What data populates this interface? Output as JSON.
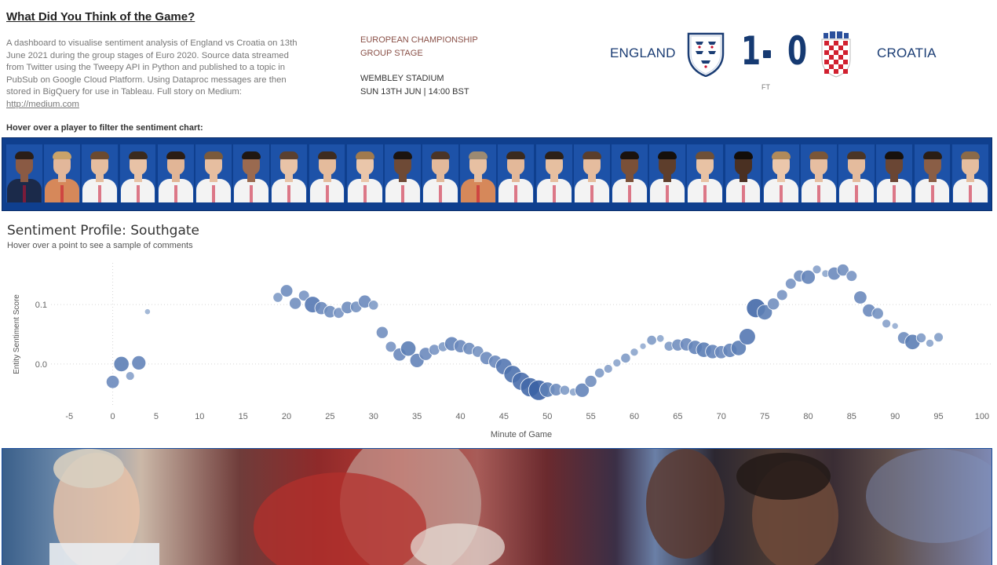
{
  "header": {
    "title": "What Did You Think of the Game?",
    "description": "A dashboard to visualise sentiment analysis of England vs Croatia on 13th June 2021 during the group stages of Euro 2020. Source data streamed from Twitter using the Tweepy API in Python and published to a topic in PubSub on Google Cloud Platform. Using Dataproc messages are then stored in BigQuery for use in Tableau. Full story on Medium: ",
    "link_text": "http://medium.com"
  },
  "match": {
    "competition": "EUROPEAN CHAMPIONSHIP",
    "stage": "GROUP STAGE",
    "venue": "WEMBLEY STADIUM",
    "datetime": "SUN 13TH JUN | 14:00 BST",
    "home_team": "ENGLAND",
    "away_team": "CROATIA",
    "home_score": "1",
    "away_score": "0",
    "status": "FT"
  },
  "players_hint": "Hover over a player to filter the sentiment chart:",
  "players": [
    {
      "skin": "#8a5a44",
      "hair": "#2a1e18",
      "kit": "#1b2a4a"
    },
    {
      "skin": "#e2b79a",
      "hair": "#c9a36a",
      "kit": "#d6885a"
    },
    {
      "skin": "#e5bd9f",
      "hair": "#6b4a30",
      "kit": "#f3f3f3"
    },
    {
      "skin": "#e8c2a6",
      "hair": "#3a2a1e",
      "kit": "#f3f3f3"
    },
    {
      "skin": "#e1b596",
      "hair": "#2b1d14",
      "kit": "#f3f3f3"
    },
    {
      "skin": "#e6bea0",
      "hair": "#7a5a3c",
      "kit": "#f3f3f3"
    },
    {
      "skin": "#9a6a50",
      "hair": "#1f1712",
      "kit": "#f3f3f3"
    },
    {
      "skin": "#e8c3a7",
      "hair": "#5a4030",
      "kit": "#f3f3f3"
    },
    {
      "skin": "#e4bb9c",
      "hair": "#3e2c20",
      "kit": "#f3f3f3"
    },
    {
      "skin": "#eac6aa",
      "hair": "#a07a4e",
      "kit": "#f3f3f3"
    },
    {
      "skin": "#6e4a36",
      "hair": "#1b1410",
      "kit": "#f3f3f3"
    },
    {
      "skin": "#e2b99b",
      "hair": "#4a3426",
      "kit": "#f3f3f3"
    },
    {
      "skin": "#e7c0a2",
      "hair": "#9c8a72",
      "kit": "#d6885a"
    },
    {
      "skin": "#e3b899",
      "hair": "#3a2a1f",
      "kit": "#f3f3f3"
    },
    {
      "skin": "#e6bfa0",
      "hair": "#2c2018",
      "kit": "#f3f3f3"
    },
    {
      "skin": "#e5bc9e",
      "hair": "#5a3e2c",
      "kit": "#f3f3f3"
    },
    {
      "skin": "#7a5038",
      "hair": "#1a120e",
      "kit": "#f3f3f3"
    },
    {
      "skin": "#5e3e2c",
      "hair": "#15100c",
      "kit": "#f3f3f3"
    },
    {
      "skin": "#e8c2a4",
      "hair": "#6e5038",
      "kit": "#f3f3f3"
    },
    {
      "skin": "#4a3022",
      "hair": "#120d0a",
      "kit": "#f3f3f3"
    },
    {
      "skin": "#ebc7ab",
      "hair": "#b08a5a",
      "kit": "#f3f3f3"
    },
    {
      "skin": "#e6bea1",
      "hair": "#7a5638",
      "kit": "#f3f3f3"
    },
    {
      "skin": "#e4bb9d",
      "hair": "#4a3526",
      "kit": "#f3f3f3"
    },
    {
      "skin": "#6a4634",
      "hair": "#17110d",
      "kit": "#f3f3f3"
    },
    {
      "skin": "#8a5e46",
      "hair": "#2a1e16",
      "kit": "#f3f3f3"
    },
    {
      "skin": "#e5bd9f",
      "hair": "#8a6a48",
      "kit": "#f3f3f3"
    }
  ],
  "chart_title": "Sentiment Profile:  Southgate",
  "chart_subtitle": "Hover over a point to see a sample of comments",
  "chart_data": {
    "type": "scatter",
    "xlabel": "Minute of Game",
    "ylabel": "Entity Sentiment Score",
    "xlim": [
      -8,
      101
    ],
    "ylim": [
      -0.07,
      0.17
    ],
    "xticks": [
      -5,
      0,
      5,
      10,
      15,
      20,
      25,
      30,
      35,
      40,
      45,
      50,
      55,
      60,
      65,
      70,
      75,
      80,
      85,
      90,
      95,
      100
    ],
    "yticks": [
      0.0,
      0.1
    ],
    "ytick_labels": [
      "0.0",
      "0.1"
    ],
    "grid": "horizontal dotted",
    "points": [
      {
        "x": 0,
        "y": -0.03,
        "s": 0.45
      },
      {
        "x": 1,
        "y": 0.0,
        "s": 0.55
      },
      {
        "x": 2,
        "y": -0.02,
        "s": 0.25
      },
      {
        "x": 3,
        "y": 0.002,
        "s": 0.5
      },
      {
        "x": 4,
        "y": 0.088,
        "s": 0.12
      },
      {
        "x": 19,
        "y": 0.112,
        "s": 0.3
      },
      {
        "x": 20,
        "y": 0.123,
        "s": 0.42
      },
      {
        "x": 21,
        "y": 0.102,
        "s": 0.4
      },
      {
        "x": 22,
        "y": 0.115,
        "s": 0.35
      },
      {
        "x": 23,
        "y": 0.1,
        "s": 0.6
      },
      {
        "x": 24,
        "y": 0.094,
        "s": 0.45
      },
      {
        "x": 25,
        "y": 0.088,
        "s": 0.42
      },
      {
        "x": 26,
        "y": 0.086,
        "s": 0.35
      },
      {
        "x": 27,
        "y": 0.095,
        "s": 0.42
      },
      {
        "x": 28,
        "y": 0.096,
        "s": 0.38
      },
      {
        "x": 29,
        "y": 0.105,
        "s": 0.45
      },
      {
        "x": 30,
        "y": 0.099,
        "s": 0.3
      },
      {
        "x": 31,
        "y": 0.053,
        "s": 0.4
      },
      {
        "x": 32,
        "y": 0.029,
        "s": 0.35
      },
      {
        "x": 33,
        "y": 0.016,
        "s": 0.45
      },
      {
        "x": 34,
        "y": 0.026,
        "s": 0.55
      },
      {
        "x": 35,
        "y": 0.006,
        "s": 0.5
      },
      {
        "x": 36,
        "y": 0.017,
        "s": 0.45
      },
      {
        "x": 37,
        "y": 0.024,
        "s": 0.35
      },
      {
        "x": 38,
        "y": 0.029,
        "s": 0.3
      },
      {
        "x": 39,
        "y": 0.034,
        "s": 0.5
      },
      {
        "x": 40,
        "y": 0.03,
        "s": 0.45
      },
      {
        "x": 41,
        "y": 0.026,
        "s": 0.42
      },
      {
        "x": 42,
        "y": 0.021,
        "s": 0.38
      },
      {
        "x": 43,
        "y": 0.01,
        "s": 0.45
      },
      {
        "x": 44,
        "y": 0.004,
        "s": 0.45
      },
      {
        "x": 45,
        "y": -0.004,
        "s": 0.6
      },
      {
        "x": 46,
        "y": -0.017,
        "s": 0.65
      },
      {
        "x": 47,
        "y": -0.029,
        "s": 0.68
      },
      {
        "x": 48,
        "y": -0.039,
        "s": 0.72
      },
      {
        "x": 49,
        "y": -0.044,
        "s": 0.78
      },
      {
        "x": 50,
        "y": -0.043,
        "s": 0.55
      },
      {
        "x": 51,
        "y": -0.043,
        "s": 0.42
      },
      {
        "x": 52,
        "y": -0.044,
        "s": 0.3
      },
      {
        "x": 53,
        "y": -0.047,
        "s": 0.22
      },
      {
        "x": 54,
        "y": -0.044,
        "s": 0.5
      },
      {
        "x": 55,
        "y": -0.029,
        "s": 0.4
      },
      {
        "x": 56,
        "y": -0.015,
        "s": 0.3
      },
      {
        "x": 57,
        "y": -0.008,
        "s": 0.25
      },
      {
        "x": 58,
        "y": 0.002,
        "s": 0.22
      },
      {
        "x": 59,
        "y": 0.01,
        "s": 0.3
      },
      {
        "x": 60,
        "y": 0.02,
        "s": 0.22
      },
      {
        "x": 61,
        "y": 0.03,
        "s": 0.15
      },
      {
        "x": 62,
        "y": 0.04,
        "s": 0.3
      },
      {
        "x": 63,
        "y": 0.043,
        "s": 0.2
      },
      {
        "x": 64,
        "y": 0.03,
        "s": 0.3
      },
      {
        "x": 65,
        "y": 0.032,
        "s": 0.4
      },
      {
        "x": 66,
        "y": 0.033,
        "s": 0.45
      },
      {
        "x": 67,
        "y": 0.028,
        "s": 0.5
      },
      {
        "x": 68,
        "y": 0.024,
        "s": 0.55
      },
      {
        "x": 69,
        "y": 0.021,
        "s": 0.5
      },
      {
        "x": 70,
        "y": 0.02,
        "s": 0.45
      },
      {
        "x": 71,
        "y": 0.023,
        "s": 0.5
      },
      {
        "x": 72,
        "y": 0.027,
        "s": 0.55
      },
      {
        "x": 73,
        "y": 0.046,
        "s": 0.6
      },
      {
        "x": 74,
        "y": 0.094,
        "s": 0.72
      },
      {
        "x": 75,
        "y": 0.087,
        "s": 0.55
      },
      {
        "x": 76,
        "y": 0.101,
        "s": 0.4
      },
      {
        "x": 77,
        "y": 0.116,
        "s": 0.35
      },
      {
        "x": 78,
        "y": 0.135,
        "s": 0.35
      },
      {
        "x": 79,
        "y": 0.148,
        "s": 0.4
      },
      {
        "x": 80,
        "y": 0.146,
        "s": 0.5
      },
      {
        "x": 81,
        "y": 0.159,
        "s": 0.25
      },
      {
        "x": 82,
        "y": 0.152,
        "s": 0.2
      },
      {
        "x": 83,
        "y": 0.152,
        "s": 0.45
      },
      {
        "x": 84,
        "y": 0.158,
        "s": 0.4
      },
      {
        "x": 85,
        "y": 0.148,
        "s": 0.35
      },
      {
        "x": 86,
        "y": 0.112,
        "s": 0.45
      },
      {
        "x": 87,
        "y": 0.09,
        "s": 0.45
      },
      {
        "x": 88,
        "y": 0.085,
        "s": 0.38
      },
      {
        "x": 89,
        "y": 0.068,
        "s": 0.25
      },
      {
        "x": 90,
        "y": 0.064,
        "s": 0.15
      },
      {
        "x": 91,
        "y": 0.044,
        "s": 0.42
      },
      {
        "x": 92,
        "y": 0.037,
        "s": 0.55
      },
      {
        "x": 93,
        "y": 0.044,
        "s": 0.3
      },
      {
        "x": 94,
        "y": 0.035,
        "s": 0.22
      },
      {
        "x": 95,
        "y": 0.045,
        "s": 0.28
      }
    ]
  },
  "colors": {
    "accent_navy": "#163a72",
    "strip_blue": "#0f3f8e",
    "point_light": "#9fb8d6",
    "point_dark": "#1f4f99",
    "competition_text": "#8a5148"
  },
  "banner_image": "england-players-celebration-photo"
}
